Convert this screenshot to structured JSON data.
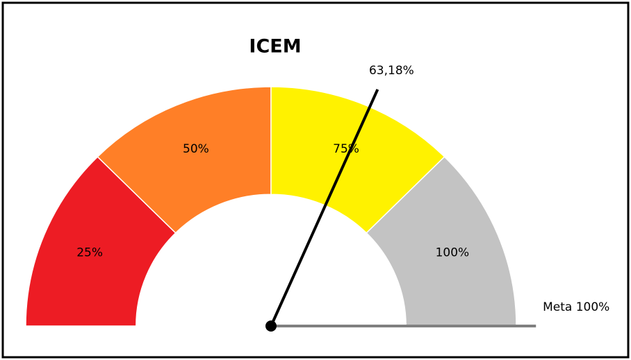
{
  "chart_data": {
    "type": "gauge",
    "title": "ICEM",
    "categories": [
      "25%",
      "50%",
      "75%",
      "100%"
    ],
    "values": [
      25,
      25,
      25,
      25
    ],
    "colors": [
      "#ed1c24",
      "#ff7f27",
      "#fff200",
      "#c3c3c3"
    ],
    "ylim": [
      0,
      100
    ],
    "needle": {
      "value": 63.18,
      "label": "63,18%",
      "color": "#000000"
    },
    "target": {
      "value": 100,
      "label": "Meta 100%",
      "color": "#808080"
    }
  }
}
